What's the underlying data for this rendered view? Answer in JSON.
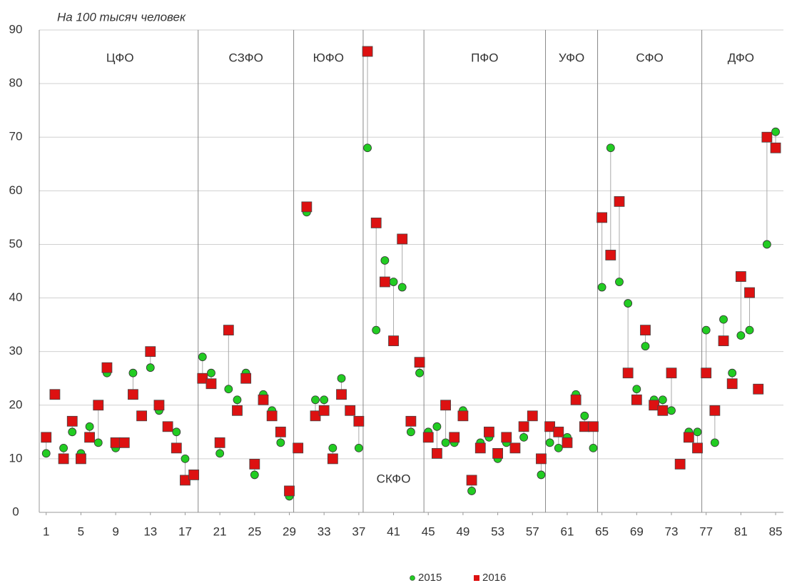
{
  "chart_data": {
    "type": "scatter",
    "title": "На 100 тысяч человек",
    "x": [
      1,
      2,
      3,
      4,
      5,
      6,
      7,
      8,
      9,
      10,
      11,
      12,
      13,
      14,
      15,
      16,
      17,
      18,
      19,
      20,
      21,
      22,
      23,
      24,
      25,
      26,
      27,
      28,
      29,
      30,
      31,
      32,
      33,
      34,
      35,
      36,
      37,
      38,
      39,
      40,
      41,
      42,
      43,
      44,
      45,
      46,
      47,
      48,
      49,
      50,
      51,
      52,
      53,
      54,
      55,
      56,
      57,
      58,
      59,
      60,
      61,
      62,
      63,
      64,
      65,
      66,
      67,
      68,
      69,
      70,
      71,
      72,
      73,
      74,
      75,
      76,
      77,
      78,
      79,
      80,
      81,
      82,
      83,
      84,
      85
    ],
    "series": [
      {
        "name": "2015",
        "color": "#22cc22",
        "marker": "circle",
        "values": [
          11,
          22,
          12,
          15,
          11,
          16,
          13,
          26,
          12,
          13,
          26,
          18,
          27,
          19,
          16,
          15,
          10,
          7,
          29,
          26,
          11,
          23,
          21,
          26,
          7,
          22,
          19,
          13,
          3,
          12,
          56,
          21,
          21,
          12,
          25,
          19,
          12,
          68,
          34,
          47,
          43,
          42,
          15,
          26,
          15,
          16,
          13,
          13,
          19,
          4,
          13,
          14,
          10,
          13,
          12,
          14,
          18,
          7,
          13,
          12,
          14,
          22,
          18,
          12,
          42,
          68,
          43,
          39,
          23,
          31,
          21,
          21,
          19,
          9,
          15,
          15,
          34,
          13,
          36,
          26,
          33,
          34,
          23,
          50,
          71
        ]
      },
      {
        "name": "2016",
        "color": "#dd1111",
        "marker": "square",
        "values": [
          14,
          22,
          10,
          17,
          10,
          14,
          20,
          27,
          13,
          13,
          22,
          18,
          30,
          20,
          16,
          12,
          6,
          7,
          25,
          24,
          13,
          34,
          19,
          25,
          9,
          21,
          18,
          15,
          4,
          12,
          57,
          18,
          19,
          10,
          22,
          19,
          17,
          86,
          54,
          43,
          32,
          51,
          17,
          28,
          14,
          11,
          20,
          14,
          18,
          6,
          12,
          15,
          11,
          14,
          12,
          16,
          18,
          10,
          16,
          15,
          13,
          21,
          16,
          16,
          55,
          48,
          58,
          26,
          21,
          34,
          20,
          19,
          26,
          9,
          14,
          12,
          26,
          19,
          32,
          24,
          44,
          41,
          23,
          70,
          68
        ]
      }
    ],
    "regions": [
      {
        "name": "ЦФО",
        "first": 1,
        "last": 18
      },
      {
        "name": "СЗФО",
        "first": 19,
        "last": 29
      },
      {
        "name": "ЮФО",
        "first": 30,
        "last": 37
      },
      {
        "name": "СКФО",
        "first": 38,
        "last": 44
      },
      {
        "name": "ПФО",
        "first": 45,
        "last": 58
      },
      {
        "name": "УФО",
        "first": 59,
        "last": 64
      },
      {
        "name": "СФО",
        "first": 65,
        "last": 76
      },
      {
        "name": "ДФО",
        "first": 77,
        "last": 85
      }
    ],
    "xlim": [
      0.2,
      85.9
    ],
    "xticks": [
      1,
      5,
      9,
      13,
      17,
      21,
      25,
      29,
      33,
      37,
      41,
      45,
      49,
      53,
      57,
      61,
      65,
      69,
      73,
      77,
      81,
      85
    ],
    "ylim": [
      0,
      90
    ],
    "yticks": [
      0,
      10,
      20,
      30,
      40,
      50,
      60,
      70,
      80,
      90
    ],
    "grid": true,
    "legend": "bottom"
  }
}
